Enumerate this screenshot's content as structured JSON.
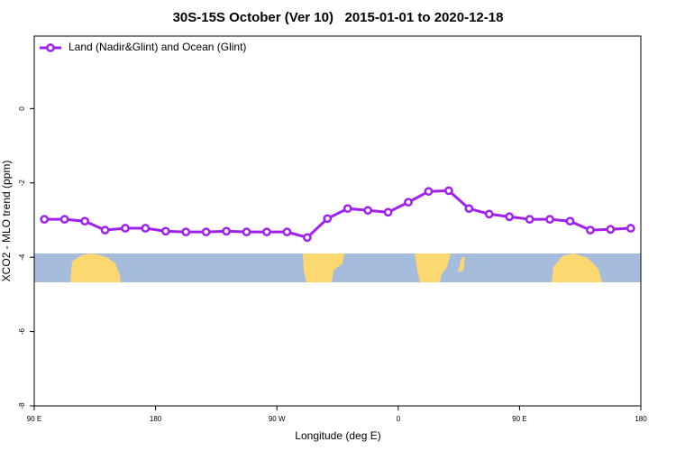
{
  "chart_data": {
    "type": "line",
    "title": "30S-15S October (Ver 10)   2015-01-01 to 2020-12-18",
    "x_label": "Longitude (deg E)",
    "y_label": "XCO2 - MLO trend (ppm)",
    "x": [
      97.5,
      112.5,
      127.5,
      142.5,
      157.5,
      172.5,
      187.5,
      202.5,
      217.5,
      232.5,
      247.5,
      262.5,
      277.5,
      292.5,
      307.5,
      322.5,
      337.5,
      352.5,
      367.5,
      382.5,
      397.5,
      412.5,
      427.5,
      442.5,
      457.5,
      472.5,
      487.5,
      502.5,
      517.5,
      532.5
    ],
    "series": [
      {
        "name": "Land (Nadir&Glint) and Ocean (Glint)",
        "color": "#a020f0",
        "values": [
          -2.98,
          -2.98,
          -3.03,
          -3.27,
          -3.22,
          -3.22,
          -3.3,
          -3.32,
          -3.32,
          -3.3,
          -3.32,
          -3.32,
          -3.32,
          -3.47,
          -2.96,
          -2.69,
          -2.74,
          -2.79,
          -2.52,
          -2.23,
          -2.21,
          -2.69,
          -2.84,
          -2.91,
          -2.98,
          -2.98,
          -3.03,
          -3.27,
          -3.25,
          -3.22
        ]
      }
    ],
    "xlim": [
      90,
      540
    ],
    "xticks": [
      {
        "value": 90,
        "label": "90 E"
      },
      180,
      {
        "value": 270,
        "label": "90 W"
      },
      {
        "value": 360,
        "label": "0"
      },
      {
        "value": 450,
        "label": "90 E"
      },
      {
        "value": 540,
        "label": "180"
      }
    ],
    "ylim": [
      -8,
      1.95
    ],
    "yticks": [
      -8,
      -6,
      -4,
      -2,
      0
    ],
    "legend": "top-left"
  }
}
